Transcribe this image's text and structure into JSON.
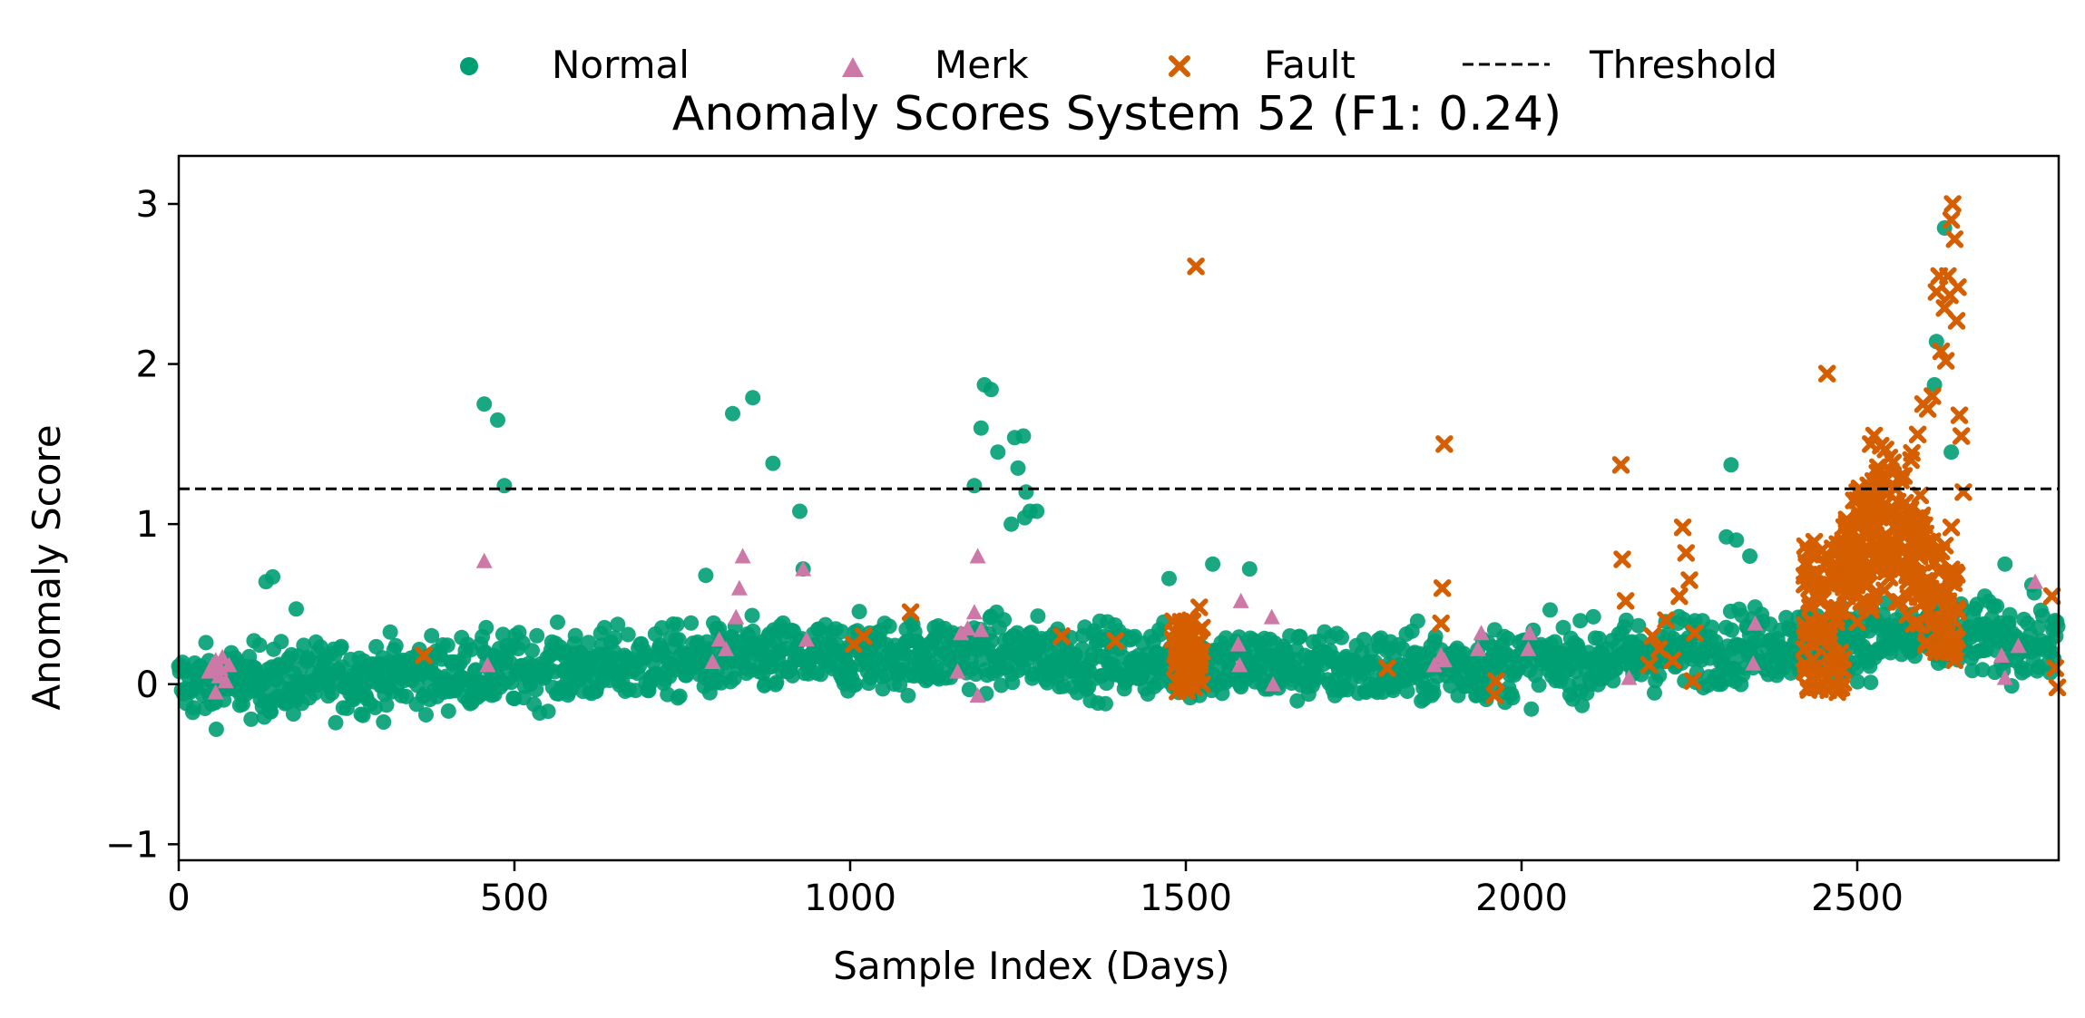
{
  "chart_data": {
    "type": "scatter",
    "title": "Anomaly Scores System 52 (F1: 0.24)",
    "xlabel": "Sample Index (Days)",
    "ylabel": "Anomaly Score",
    "xlim": [
      0,
      2800
    ],
    "ylim": [
      -1.1,
      3.3
    ],
    "xticks": [
      0,
      500,
      1000,
      1500,
      2000,
      2500
    ],
    "yticks": [
      -1,
      0,
      1,
      2,
      3
    ],
    "xtick_labels": [
      "0",
      "500",
      "1000",
      "1500",
      "2000",
      "2500"
    ],
    "ytick_labels": [
      "−1",
      "0",
      "1",
      "2",
      "3"
    ],
    "grid": false,
    "legend_position": "top-center",
    "threshold": {
      "name": "Threshold",
      "value": 1.22,
      "color": "#000000",
      "style": "dashed"
    },
    "series": [
      {
        "name": "Normal",
        "marker": "circle",
        "color": "#009E73",
        "base_level": [
          [
            0,
            0.0
          ],
          [
            300,
            0.05
          ],
          [
            800,
            0.15
          ],
          [
            1200,
            0.2
          ],
          [
            1400,
            0.15
          ],
          [
            1800,
            0.1
          ],
          [
            2100,
            0.15
          ],
          [
            2350,
            0.25
          ],
          [
            2600,
            0.3
          ],
          [
            2800,
            0.25
          ]
        ],
        "notable_points": [
          [
            455,
            1.75
          ],
          [
            475,
            1.65
          ],
          [
            485,
            1.24
          ],
          [
            825,
            1.69
          ],
          [
            855,
            1.79
          ],
          [
            885,
            1.38
          ],
          [
            925,
            1.08
          ],
          [
            930,
            0.72
          ],
          [
            1195,
            1.6
          ],
          [
            1200,
            1.87
          ],
          [
            1210,
            1.84
          ],
          [
            1220,
            1.45
          ],
          [
            1185,
            1.24
          ],
          [
            1240,
            1.0
          ],
          [
            1245,
            1.54
          ],
          [
            1250,
            1.35
          ],
          [
            1258,
            1.55
          ],
          [
            1262,
            1.2
          ],
          [
            1268,
            1.08
          ],
          [
            1278,
            1.08
          ],
          [
            1260,
            1.04
          ],
          [
            2312,
            1.37
          ],
          [
            2615,
            1.87
          ],
          [
            2618,
            2.14
          ],
          [
            2630,
            2.85
          ],
          [
            2640,
            1.45
          ],
          [
            140,
            0.67
          ],
          [
            130,
            0.64
          ],
          [
            175,
            0.47
          ],
          [
            785,
            0.68
          ],
          [
            1595,
            0.72
          ],
          [
            1540,
            0.75
          ],
          [
            1475,
            0.66
          ],
          [
            2305,
            0.92
          ],
          [
            2320,
            0.9
          ],
          [
            2340,
            0.8
          ],
          [
            2420,
            0.42
          ],
          [
            2720,
            0.75
          ],
          [
            2760,
            0.62
          ],
          [
            2690,
            0.55
          ]
        ]
      },
      {
        "name": "Merk",
        "marker": "triangle",
        "color": "#CC79A7",
        "points": [
          [
            45,
            0.08
          ],
          [
            50,
            0.12
          ],
          [
            55,
            0.15
          ],
          [
            60,
            0.05
          ],
          [
            62,
            0.1
          ],
          [
            65,
            0.17
          ],
          [
            70,
            0.02
          ],
          [
            75,
            0.12
          ],
          [
            55,
            -0.05
          ],
          [
            455,
            0.77
          ],
          [
            460,
            0.12
          ],
          [
            795,
            0.14
          ],
          [
            805,
            0.28
          ],
          [
            815,
            0.22
          ],
          [
            830,
            0.42
          ],
          [
            835,
            0.6
          ],
          [
            840,
            0.8
          ],
          [
            930,
            0.72
          ],
          [
            935,
            0.28
          ],
          [
            1160,
            0.08
          ],
          [
            1165,
            0.32
          ],
          [
            1175,
            0.35
          ],
          [
            1185,
            0.45
          ],
          [
            1190,
            0.8
          ],
          [
            1190,
            -0.07
          ],
          [
            1195,
            0.34
          ],
          [
            1578,
            0.25
          ],
          [
            1582,
            0.52
          ],
          [
            1580,
            0.12
          ],
          [
            1628,
            0.42
          ],
          [
            1630,
            0.0
          ],
          [
            1870,
            0.12
          ],
          [
            1880,
            0.18
          ],
          [
            1885,
            0.15
          ],
          [
            1935,
            0.22
          ],
          [
            1940,
            0.32
          ],
          [
            2010,
            0.22
          ],
          [
            2012,
            0.32
          ],
          [
            2160,
            0.04
          ],
          [
            2345,
            0.13
          ],
          [
            2348,
            0.38
          ],
          [
            2715,
            0.18
          ],
          [
            2720,
            0.04
          ],
          [
            2740,
            0.24
          ],
          [
            2765,
            0.64
          ]
        ]
      },
      {
        "name": "Fault",
        "marker": "x",
        "color": "#D55E00",
        "points": [
          [
            365,
            0.18
          ],
          [
            1005,
            0.25
          ],
          [
            1020,
            0.3
          ],
          [
            1090,
            0.45
          ],
          [
            1315,
            0.3
          ],
          [
            1395,
            0.27
          ],
          [
            1515,
            2.61
          ],
          [
            1520,
            0.48
          ],
          [
            1800,
            0.1
          ],
          [
            1880,
            0.38
          ],
          [
            1882,
            0.6
          ],
          [
            1885,
            1.5
          ],
          [
            1960,
            -0.07
          ],
          [
            1962,
            0.02
          ],
          [
            2148,
            1.37
          ],
          [
            2150,
            0.78
          ],
          [
            2155,
            0.52
          ],
          [
            2190,
            0.12
          ],
          [
            2195,
            0.3
          ],
          [
            2205,
            0.22
          ],
          [
            2215,
            0.4
          ],
          [
            2225,
            0.15
          ],
          [
            2235,
            0.55
          ],
          [
            2240,
            0.98
          ],
          [
            2245,
            0.82
          ],
          [
            2250,
            0.65
          ],
          [
            2255,
            0.02
          ],
          [
            2258,
            0.32
          ],
          [
            2455,
            1.94
          ],
          [
            2500,
            1.2
          ],
          [
            2520,
            1.5
          ],
          [
            2535,
            1.49
          ],
          [
            2550,
            1.33
          ],
          [
            2565,
            1.3
          ],
          [
            2580,
            1.4
          ],
          [
            2590,
            1.56
          ],
          [
            2598,
            1.75
          ],
          [
            2605,
            1.72
          ],
          [
            2612,
            1.8
          ],
          [
            2618,
            2.45
          ],
          [
            2622,
            2.55
          ],
          [
            2625,
            2.08
          ],
          [
            2630,
            2.35
          ],
          [
            2632,
            2.02
          ],
          [
            2635,
            2.55
          ],
          [
            2638,
            2.43
          ],
          [
            2640,
            2.9
          ],
          [
            2642,
            3.0
          ],
          [
            2645,
            2.78
          ],
          [
            2648,
            2.27
          ],
          [
            2650,
            2.48
          ],
          [
            2652,
            1.68
          ],
          [
            2655,
            1.55
          ],
          [
            2658,
            1.2
          ],
          [
            2645,
            0.15
          ],
          [
            2640,
            0.98
          ],
          [
            2790,
            0.55
          ],
          [
            2795,
            0.1
          ],
          [
            2798,
            -0.02
          ]
        ],
        "clusters": [
          {
            "x_range": [
              1480,
              1525
            ],
            "y_range": [
              -0.05,
              0.4
            ]
          },
          {
            "x_range": [
              2420,
              2480
            ],
            "y_range": [
              -0.05,
              0.9
            ]
          },
          {
            "x_range": [
              2480,
              2650
            ],
            "y_range": [
              0.2,
              1.6
            ]
          }
        ]
      }
    ]
  }
}
